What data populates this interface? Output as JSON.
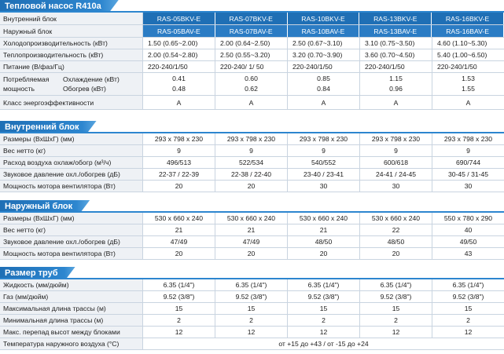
{
  "section1": {
    "title": "Тепловой насос R410a",
    "indoor_label": "Внутренний блок",
    "outdoor_label": "Наружный блок",
    "indoor_models": [
      "RAS-05BKV-E",
      "RAS-07BKV-E",
      "RAS-10BKV-E",
      "RAS-13BKV-E",
      "RAS-16BKV-E"
    ],
    "outdoor_models": [
      "RAS-05BAV-E",
      "RAS-07BAV-E",
      "RAS-10BAV-E",
      "RAS-13BAV-E",
      "RAS-16BAV-E"
    ],
    "cooling_label": "Холодопроизводительность (кВт)",
    "cooling": [
      "1.50 (0.65~2.00)",
      "2.00 (0.64~2.50)",
      "2.50 (0.67~3.10)",
      "3.10 (0.75~3.50)",
      "4.60 (1.10~5.30)"
    ],
    "heating_label": "Теплопроизводительность (кВт)",
    "heating": [
      "2.00 (0.54~2.80)",
      "2.50 (0.55~3.20)",
      "3.20 (0.70~3.90)",
      "3.60 (0.70~4.50)",
      "5.40 (1.00~6.50)"
    ],
    "power_label": "Питание (В/фаз/Гц)",
    "power": [
      "220-240/1/50",
      "220-240/ 1/ 50",
      "220-240/1/50",
      "220-240/1/50",
      "220-240/1/50"
    ],
    "consumed_label_1": "Потребляемая",
    "consumed_label_2": "мощность",
    "consumed_cool_label": "Охлаждение (кВт)",
    "consumed_heat_label": "Обогрев (кВт)",
    "consumed_cool": [
      "0.41",
      "0.60",
      "0.85",
      "1.15",
      "1.53"
    ],
    "consumed_heat": [
      "0.48",
      "0.62",
      "0.84",
      "0.96",
      "1.55"
    ],
    "class_label": "Класс энергоэффективности",
    "class": [
      "A",
      "A",
      "A",
      "A",
      "A"
    ]
  },
  "section2": {
    "title": "Внутренний блок",
    "dims_label": "Размеры (ВхШхГ) (мм)",
    "dims": [
      "293 x 798 x 230",
      "293 x 798 x 230",
      "293 x 798 x 230",
      "293 x 798 x 230",
      "293 x 798 x 230"
    ],
    "weight_label": "Вес нетто (кг)",
    "weight": [
      "9",
      "9",
      "9",
      "9",
      "9"
    ],
    "airflow_label": "Расход воздуха охлаж/обогр (м³/ч)",
    "airflow": [
      "496/513",
      "522/534",
      "540/552",
      "600/618",
      "690/744"
    ],
    "noise_label": "Звуковое давление охл./обогрев (дБ)",
    "noise": [
      "22-37 / 22-39",
      "22-38 / 22-40",
      "23-40 / 23-41",
      "24-41 / 24-45",
      "30-45 / 31-45"
    ],
    "fan_label": "Мощность мотора вентилятора (Вт)",
    "fan": [
      "20",
      "20",
      "30",
      "30",
      "30"
    ]
  },
  "section3": {
    "title": "Наружный блок",
    "dims_label": "Размеры (ВхШхГ) (мм)",
    "dims": [
      "530 x 660 x 240",
      "530 x 660 x 240",
      "530 x 660 x 240",
      "530 x 660 x 240",
      "550 x 780 x 290"
    ],
    "weight_label": "Вес нетто (кг)",
    "weight": [
      "21",
      "21",
      "21",
      "22",
      "40"
    ],
    "noise_label": "Звуковое давление охл./обогрев (дБ)",
    "noise": [
      "47/49",
      "47/49",
      "48/50",
      "48/50",
      "49/50"
    ],
    "fan_label": "Мощность мотора вентилятора (Вт)",
    "fan": [
      "20",
      "20",
      "20",
      "20",
      "43"
    ]
  },
  "section4": {
    "title": "Размер труб",
    "liquid_label": "Жидкость (мм/дюйм)",
    "liquid": [
      "6.35 (1/4\")",
      "6.35 (1/4\")",
      "6.35 (1/4\")",
      "6.35 (1/4\")",
      "6.35 (1/4\")"
    ],
    "gas_label": "Газ (мм/дюйм)",
    "gas": [
      "9.52 (3/8\")",
      "9.52 (3/8\")",
      "9.52 (3/8\")",
      "9.52 (3/8\")",
      "9.52 (3/8\")"
    ],
    "maxlen_label": "Максимальная длина трассы (м)",
    "maxlen": [
      "15",
      "15",
      "15",
      "15",
      "15"
    ],
    "minlen_label": "Минимальная длина трассы (м)",
    "minlen": [
      "2",
      "2",
      "2",
      "2",
      "2"
    ],
    "height_label": "Макс. перепад высот между блоками",
    "height": [
      "12",
      "12",
      "12",
      "12",
      "12"
    ],
    "temp_label": "Температура наружного воздуха (°C)",
    "temp": "от +15 до +43 / от -15 до +24"
  }
}
